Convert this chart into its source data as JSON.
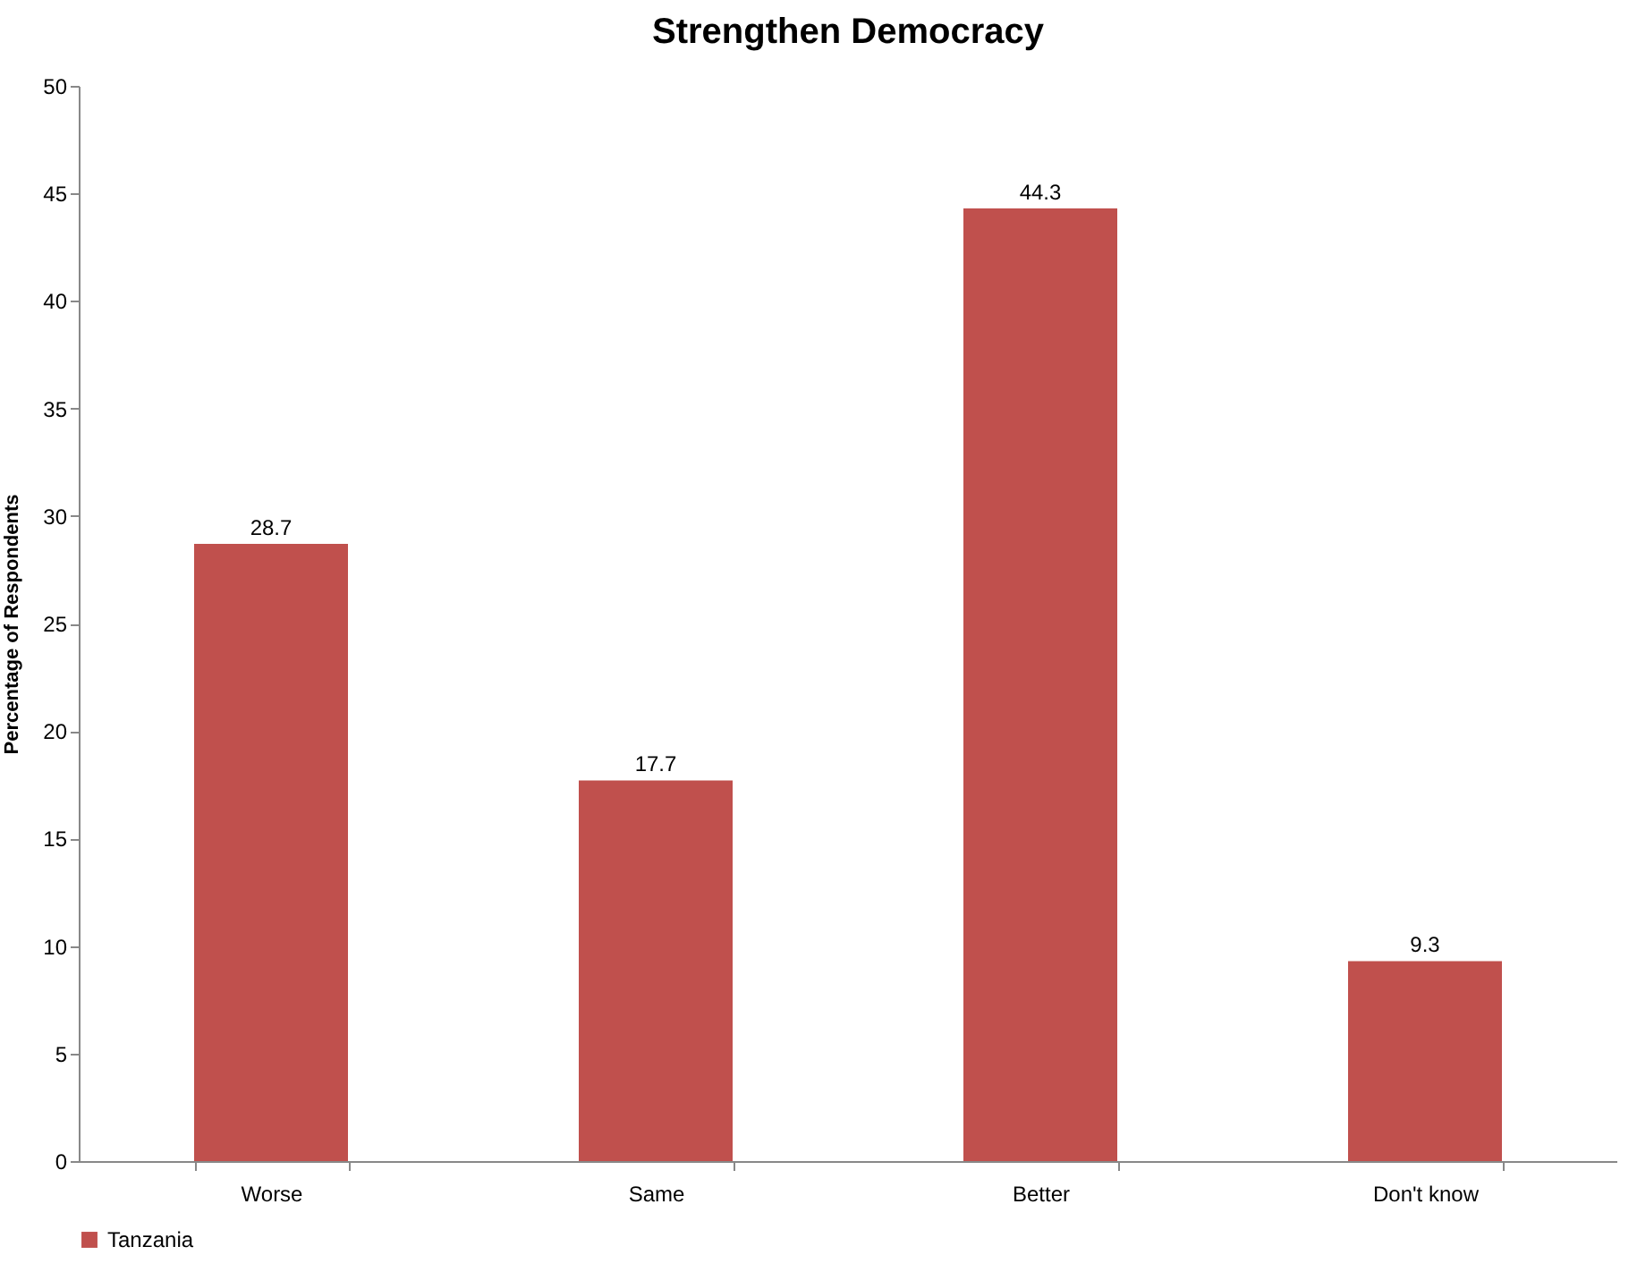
{
  "chart_data": {
    "type": "bar",
    "title": "Strengthen Democracy",
    "ylabel": "Percentage of Respondents",
    "categories": [
      "Worse",
      "Same",
      "Better",
      "Don't know"
    ],
    "series": [
      {
        "name": "Tanzania",
        "color": "#c0504d",
        "values": [
          28.7,
          17.7,
          44.3,
          9.3
        ]
      }
    ],
    "ylim": [
      0,
      50
    ],
    "yticks": [
      0,
      5,
      10,
      15,
      20,
      25,
      30,
      35,
      40,
      45,
      50
    ],
    "data_labels": true,
    "legend": "bottom",
    "grid": false
  }
}
